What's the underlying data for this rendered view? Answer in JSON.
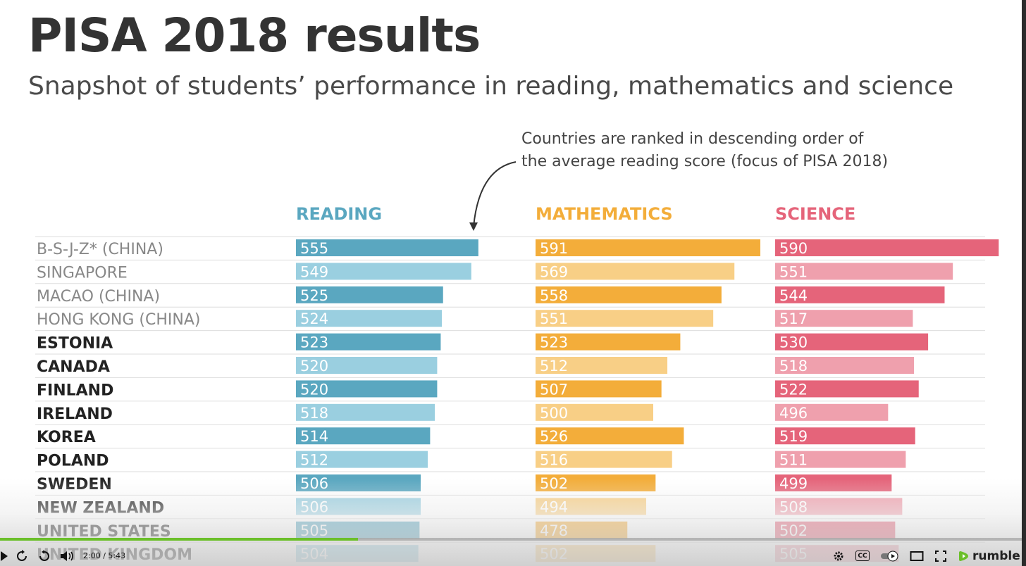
{
  "title": "PISA 2018 results",
  "subtitle": "Snapshot of students’ performance in reading, mathematics and science",
  "annotation": [
    "Countries are ranked in descending order of",
    "the average reading score (focus of PISA 2018)"
  ],
  "chart_data": {
    "type": "bar",
    "orientation": "horizontal",
    "categories": [
      "B-S-J-Z* (CHINA)",
      "SINGAPORE",
      "MACAO (CHINA)",
      "HONG KONG (CHINA)",
      "ESTONIA",
      "CANADA",
      "FINLAND",
      "IRELAND",
      "KOREA",
      "POLAND",
      "SWEDEN",
      "NEW ZEALAND",
      "UNITED STATES",
      "UNITED KINGDOM"
    ],
    "series": [
      {
        "name": "READING",
        "color": "#5aa7c0",
        "light_color": "#9acfe0",
        "values": [
          555,
          549,
          525,
          524,
          523,
          520,
          520,
          518,
          514,
          512,
          506,
          506,
          505,
          504
        ]
      },
      {
        "name": "MATHEMATICS",
        "color": "#f3ad3a",
        "light_color": "#f8cf86",
        "values": [
          591,
          569,
          558,
          551,
          523,
          512,
          507,
          500,
          526,
          516,
          502,
          494,
          478,
          502
        ]
      },
      {
        "name": "SCIENCE",
        "color": "#e5647a",
        "light_color": "#efa0ad",
        "values": [
          590,
          551,
          544,
          517,
          530,
          518,
          522,
          496,
          519,
          511,
          499,
          508,
          502,
          505
        ]
      }
    ],
    "label_colors": {
      "gray": "#888888",
      "dark": "#222222"
    },
    "gray_label_count": 4
  },
  "player": {
    "time": "2:00 / 5:43",
    "progress": 0.35,
    "brand": "rumble",
    "cc_label": "CC",
    "accent": "#6bbf2a",
    "icons": [
      "play-icon",
      "replay-icon",
      "forward-icon",
      "volume-icon",
      "gear-icon",
      "cc-icon",
      "toggle-icon",
      "theater-icon",
      "fullscreen-icon",
      "rumble-logo-icon"
    ]
  }
}
